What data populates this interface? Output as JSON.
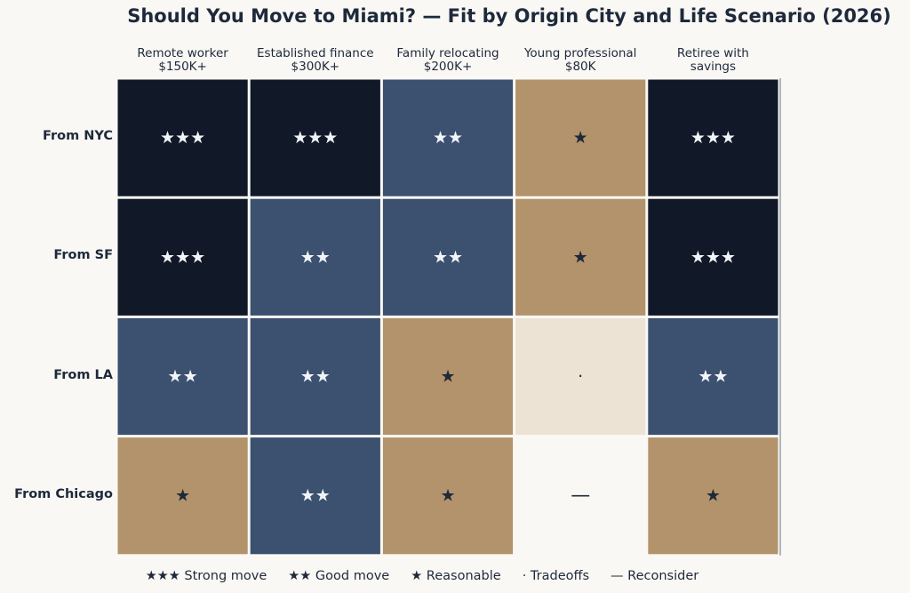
{
  "chart_data": {
    "type": "heatmap",
    "title": "Should You Move to Miami? — Fit by Origin City and Life Scenario (2026)",
    "columns": [
      {
        "line1": "Remote worker",
        "line2": "$150K+"
      },
      {
        "line1": "Established finance",
        "line2": "$300K+"
      },
      {
        "line1": "Family relocating",
        "line2": "$200K+"
      },
      {
        "line1": "Young professional",
        "line2": "$80K"
      },
      {
        "line1": "Retiree with",
        "line2": "savings"
      }
    ],
    "rows": [
      "From NYC",
      "From SF",
      "From LA",
      "From Chicago"
    ],
    "scale": [
      {
        "value": 4,
        "symbol": "★★★",
        "label": "Strong move",
        "color": "#111827",
        "text_color": "#f1f5f9"
      },
      {
        "value": 3,
        "symbol": "★★",
        "label": "Good move",
        "color": "#3c506f",
        "text_color": "#f1f5f9"
      },
      {
        "value": 2,
        "symbol": "★",
        "label": "Reasonable",
        "color": "#b3936b",
        "text_color": "#1e293b"
      },
      {
        "value": 1,
        "symbol": "·",
        "label": "Tradeoffs",
        "color": "#ede3d4",
        "text_color": "#1e293b"
      },
      {
        "value": 0,
        "symbol": "—",
        "label": "Reconsider",
        "color": "#f9f8f4",
        "text_color": "#1e293b"
      }
    ],
    "values": [
      [
        4,
        4,
        3,
        2,
        4
      ],
      [
        4,
        3,
        3,
        2,
        4
      ],
      [
        3,
        3,
        2,
        1,
        3
      ],
      [
        2,
        3,
        2,
        0,
        2
      ]
    ],
    "legend_position": "bottom"
  }
}
